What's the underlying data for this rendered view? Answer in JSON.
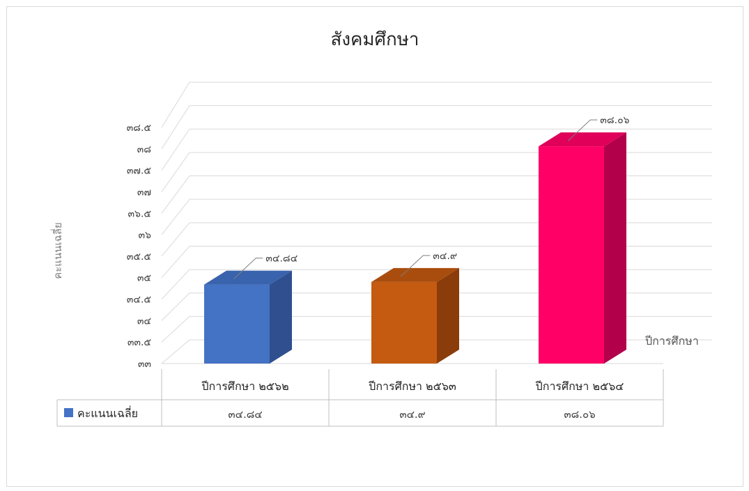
{
  "chart_data": {
    "type": "bar",
    "title": "สังคมศึกษา",
    "xlabel": "",
    "ylabel": "คะแนนเฉลี่ย",
    "depth_axis_label": "ปีการศึกษา",
    "categories": [
      "ปีการศึกษา ๒๕๖๒",
      "ปีการศึกษา ๒๕๖๓",
      "ปีการศึกษา ๒๕๖๔"
    ],
    "series": [
      {
        "name": "คะแนนเฉลี่ย",
        "values": [
          34.84,
          34.9,
          38.06
        ],
        "labels": [
          "๓๔.๘๔",
          "๓๔.๙",
          "๓๘.๐๖"
        ]
      }
    ],
    "bar_colors": [
      "#4472c4",
      "#c55a11",
      "#ff0066"
    ],
    "bar_side_colors": [
      "#2f4f8f",
      "#8a3d0a",
      "#b3004a"
    ],
    "bar_top_colors": [
      "#3a63ad",
      "#a94d0e",
      "#e0005a"
    ],
    "ylim": [
      33,
      38.5
    ],
    "yticks": [
      33,
      33.5,
      34,
      34.5,
      35,
      35.5,
      36,
      36.5,
      37,
      37.5,
      38,
      38.5
    ],
    "ytick_labels": [
      "๓๓",
      "๓๓.๕",
      "๓๔",
      "๓๔.๕",
      "๓๕",
      "๓๕.๕",
      "๓๖",
      "๓๖.๕",
      "๓๗",
      "๓๗.๕",
      "๓๘",
      "๓๘.๕"
    ],
    "legend_placement": "data-table",
    "grid": true,
    "data_table": true
  }
}
